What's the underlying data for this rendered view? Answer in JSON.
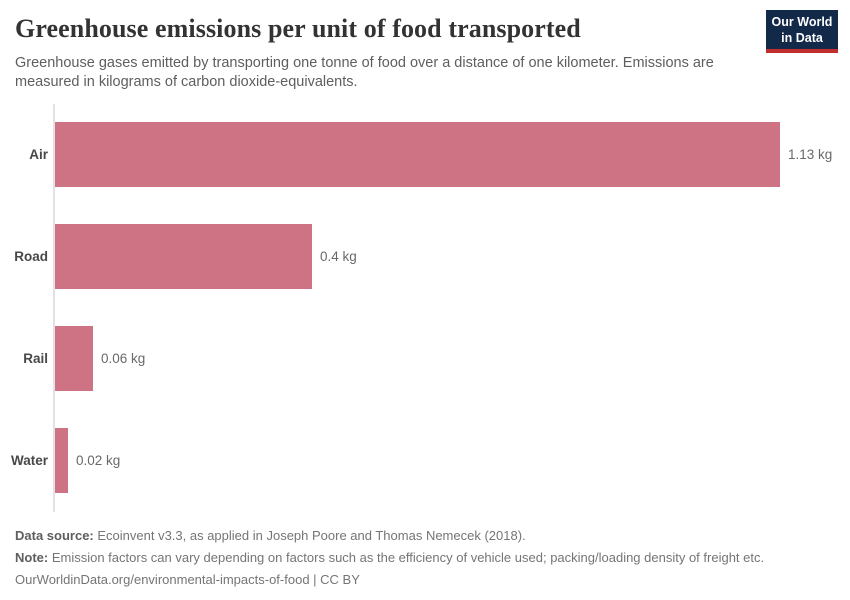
{
  "chart_data": {
    "type": "bar",
    "orientation": "horizontal",
    "title": "Greenhouse emissions per unit of food transported",
    "subtitle": "Greenhouse gases emitted by transporting one tonne of food over a distance of one kilometer. Emissions are measured in kilograms of carbon dioxide-equivalents.",
    "categories": [
      "Air",
      "Road",
      "Rail",
      "Water"
    ],
    "values": [
      1.13,
      0.4,
      0.06,
      0.02
    ],
    "value_labels": [
      "1.13 kg",
      "0.4 kg",
      "0.06 kg",
      "0.02 kg"
    ],
    "unit": "kg",
    "xlim": [
      0,
      1.13
    ],
    "xlabel": "",
    "ylabel": "",
    "grid": false,
    "legend": "none",
    "bar_color": "#cd7384",
    "axis_line_color": "#e2e2e2"
  },
  "logo": {
    "line1": "Our World",
    "line2": "in Data",
    "background_color": "#12294a",
    "strip_color": "#c22d2e"
  },
  "footer": {
    "data_source_label": "Data source:",
    "data_source_text": " Ecoinvent v3.3, as applied in Joseph Poore and Thomas Nemecek (2018).",
    "note_label": "Note:",
    "note_text": " Emission factors can vary depending on factors such as the efficiency of vehicle used; packing/loading density of freight etc.",
    "url_line": "OurWorldinData.org/environmental-impacts-of-food | CC BY"
  }
}
